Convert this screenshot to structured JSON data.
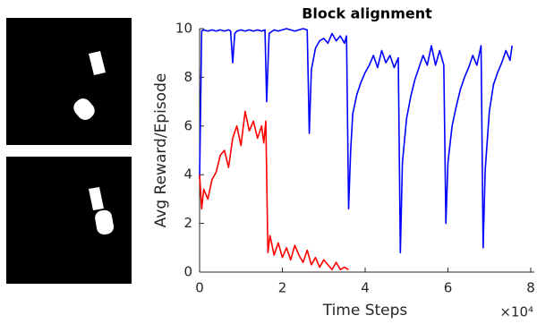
{
  "chart_data": {
    "type": "line",
    "title": "Block alignment",
    "xlabel": "Time Steps",
    "ylabel": "Avg Reward/Episode",
    "x_exponent_label": "×10⁴",
    "xlim": [
      0,
      8
    ],
    "ylim": [
      0,
      10
    ],
    "xticks": [
      0,
      2,
      4,
      6,
      8
    ],
    "yticks": [
      0,
      2,
      4,
      6,
      8,
      10
    ],
    "series": [
      {
        "color": "#0000ff",
        "x": [
          0,
          0.05,
          0.1,
          0.2,
          0.3,
          0.4,
          0.5,
          0.6,
          0.7,
          0.75,
          0.8,
          0.85,
          0.9,
          1.0,
          1.1,
          1.2,
          1.3,
          1.4,
          1.5,
          1.58,
          1.62,
          1.68,
          1.8,
          1.9,
          2.0,
          2.1,
          2.2,
          2.3,
          2.4,
          2.5,
          2.6,
          2.65,
          2.7,
          2.8,
          2.9,
          3.0,
          3.1,
          3.2,
          3.3,
          3.4,
          3.5,
          3.55,
          3.6,
          3.65,
          3.7,
          3.8,
          3.9,
          4.0,
          4.1,
          4.2,
          4.3,
          4.4,
          4.5,
          4.6,
          4.7,
          4.8,
          4.85,
          4.9,
          5.0,
          5.1,
          5.2,
          5.3,
          5.4,
          5.5,
          5.6,
          5.7,
          5.8,
          5.9,
          5.95,
          6.0,
          6.1,
          6.2,
          6.3,
          6.4,
          6.5,
          6.6,
          6.7,
          6.8,
          6.85,
          6.9,
          7.0,
          7.1,
          7.2,
          7.3,
          7.4,
          7.5,
          7.55
        ],
        "values": [
          3.8,
          9.9,
          9.95,
          9.9,
          9.95,
          9.9,
          9.95,
          9.9,
          9.95,
          9.9,
          8.6,
          9.8,
          9.9,
          9.95,
          9.9,
          9.95,
          9.9,
          9.95,
          9.9,
          9.95,
          7.0,
          9.8,
          9.95,
          9.9,
          9.95,
          10.0,
          9.95,
          9.9,
          9.95,
          10.0,
          9.95,
          5.7,
          8.3,
          9.2,
          9.5,
          9.6,
          9.4,
          9.8,
          9.5,
          9.7,
          9.4,
          9.7,
          2.6,
          5.0,
          6.5,
          7.3,
          7.8,
          8.2,
          8.5,
          8.9,
          8.4,
          9.1,
          8.6,
          8.9,
          8.4,
          8.8,
          0.8,
          4.5,
          6.3,
          7.2,
          7.9,
          8.4,
          8.9,
          8.5,
          9.3,
          8.5,
          9.1,
          8.5,
          2.0,
          4.5,
          6.0,
          6.8,
          7.5,
          8.0,
          8.4,
          8.9,
          8.5,
          9.3,
          1.0,
          4.2,
          6.6,
          7.7,
          8.2,
          8.6,
          9.1,
          8.7,
          9.3
        ]
      },
      {
        "color": "#ff0000",
        "x": [
          0,
          0.05,
          0.1,
          0.2,
          0.3,
          0.4,
          0.5,
          0.6,
          0.7,
          0.8,
          0.9,
          1.0,
          1.1,
          1.2,
          1.3,
          1.4,
          1.5,
          1.55,
          1.6,
          1.65,
          1.7,
          1.8,
          1.9,
          2.0,
          2.1,
          2.2,
          2.3,
          2.4,
          2.5,
          2.6,
          2.7,
          2.8,
          2.9,
          3.0,
          3.1,
          3.2,
          3.3,
          3.4,
          3.5,
          3.6
        ],
        "values": [
          4.0,
          2.6,
          3.4,
          3.0,
          3.8,
          4.1,
          4.8,
          5.0,
          4.3,
          5.5,
          6.0,
          5.2,
          6.6,
          5.8,
          6.2,
          5.5,
          6.0,
          5.3,
          6.2,
          0.8,
          1.5,
          0.7,
          1.2,
          0.6,
          1.0,
          0.5,
          1.1,
          0.7,
          0.4,
          0.9,
          0.3,
          0.6,
          0.2,
          0.5,
          0.3,
          0.1,
          0.4,
          0.1,
          0.2,
          0.1
        ]
      }
    ]
  }
}
